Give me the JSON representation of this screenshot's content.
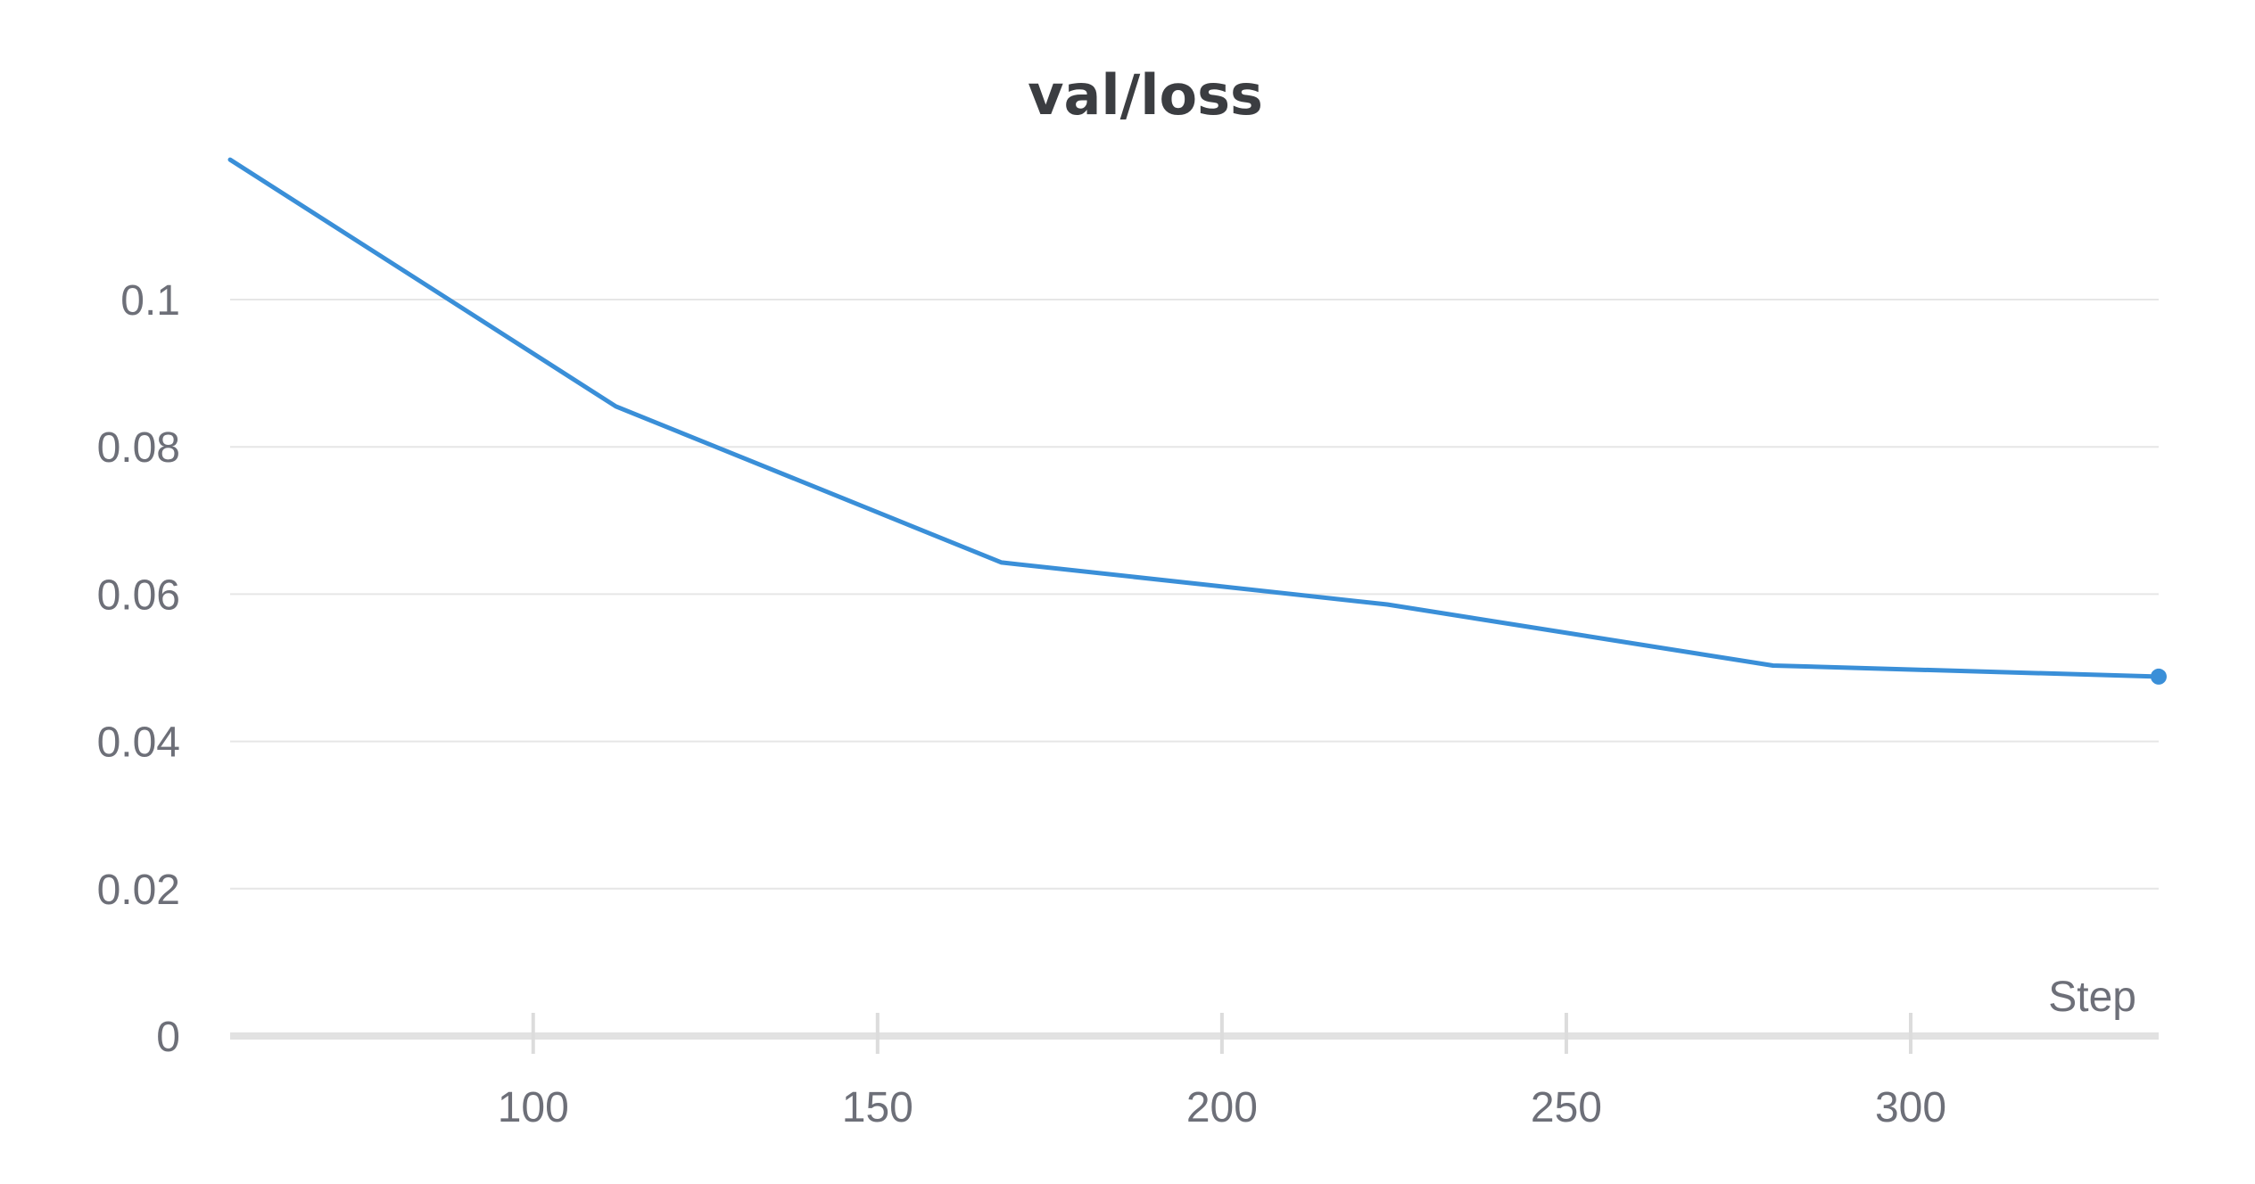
{
  "chart_data": {
    "type": "line",
    "title": "val/loss",
    "xlabel": "Step",
    "ylabel": "",
    "xlim": [
      56,
      336
    ],
    "ylim": [
      0,
      0.119
    ],
    "x_ticks": [
      100,
      150,
      200,
      250,
      300
    ],
    "y_ticks": [
      0,
      0.02,
      0.04,
      0.06,
      0.08,
      0.1
    ],
    "x_tick_labels": [
      "100",
      "150",
      "200",
      "250",
      "300"
    ],
    "y_tick_labels": [
      "0",
      "0.02",
      "0.04",
      "0.06",
      "0.08",
      "0.1"
    ],
    "grid": true,
    "legend": "none",
    "series": [
      {
        "color": "#3a8fd8",
        "x": [
          56,
          112,
          168,
          224,
          280,
          336
        ],
        "y": [
          0.119,
          0.0855,
          0.0643,
          0.0586,
          0.0503,
          0.0488
        ],
        "end_marker": true
      }
    ]
  }
}
